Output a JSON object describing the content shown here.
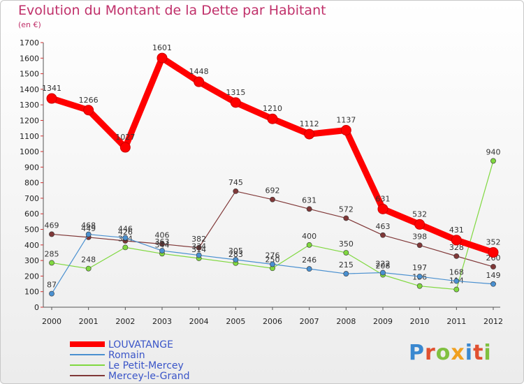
{
  "title": "Evolution du Montant de la Dette par Habitant",
  "subtitle": "(en €)",
  "logo": "Proxiti",
  "chart_data": {
    "type": "line",
    "x": [
      "2000",
      "2001",
      "2002",
      "2003",
      "2004",
      "2005",
      "2006",
      "2007",
      "2008",
      "2009",
      "2010",
      "2011",
      "2012"
    ],
    "ylim": [
      0,
      1700
    ],
    "yticks": [
      0,
      100,
      200,
      300,
      400,
      500,
      600,
      700,
      800,
      900,
      1000,
      1100,
      1200,
      1300,
      1400,
      1500,
      1600,
      1700
    ],
    "grid": false,
    "legend": "bottom-left",
    "series": [
      {
        "name": "LOUVATANGE",
        "color": "#ff0000",
        "values": [
          1341,
          1266,
          1027,
          1601,
          1448,
          1315,
          1210,
          1112,
          1137,
          631,
          532,
          431,
          352
        ]
      },
      {
        "name": "Romain",
        "color": "#4a90d0",
        "values": [
          87,
          468,
          446,
          363,
          334,
          305,
          276,
          246,
          215,
          222,
          197,
          168,
          149
        ]
      },
      {
        "name": "Le Petit-Mercey",
        "color": "#80d840",
        "values": [
          285,
          248,
          384,
          344,
          314,
          283,
          250,
          400,
          350,
          208,
          136,
          114,
          940
        ]
      },
      {
        "name": "Mercey-le-Grand",
        "color": "#803838",
        "values": [
          469,
          449,
          426,
          406,
          382,
          745,
          692,
          631,
          572,
          463,
          398,
          328,
          260
        ]
      }
    ]
  }
}
